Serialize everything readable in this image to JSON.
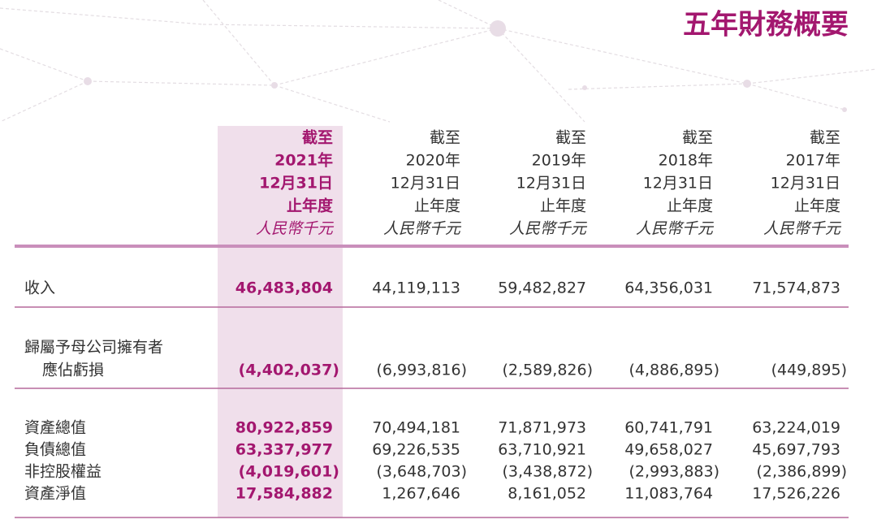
{
  "title": "五年財務概要",
  "table": {
    "columns": [
      {
        "lines": [
          "截至",
          "2021年",
          "12月31日",
          "止年度",
          "人民幣千元"
        ]
      },
      {
        "lines": [
          "截至",
          "2020年",
          "12月31日",
          "止年度",
          "人民幣千元"
        ]
      },
      {
        "lines": [
          "截至",
          "2019年",
          "12月31日",
          "止年度",
          "人民幣千元"
        ]
      },
      {
        "lines": [
          "截至",
          "2018年",
          "12月31日",
          "止年度",
          "人民幣千元"
        ]
      },
      {
        "lines": [
          "截至",
          "2017年",
          "12月31日",
          "止年度",
          "人民幣千元"
        ]
      }
    ],
    "rows": [
      {
        "label": [
          "收入"
        ],
        "values": [
          "46,483,804",
          "44,119,113",
          "59,482,827",
          "64,356,031",
          "71,574,873"
        ]
      },
      {
        "label": [
          "歸屬予母公司擁有者",
          "應佔虧損"
        ],
        "values": [
          "(4,402,037)",
          "(6,993,816)",
          "(2,589,826)",
          "(4,886,895)",
          "(449,895)"
        ]
      },
      {
        "label": [
          "資產總值"
        ],
        "values": [
          "80,922,859",
          "70,494,181",
          "71,871,973",
          "60,741,791",
          "63,224,019"
        ]
      },
      {
        "label": [
          "負債總值"
        ],
        "values": [
          "63,337,977",
          "69,226,535",
          "63,710,921",
          "49,658,027",
          "45,697,793"
        ]
      },
      {
        "label": [
          "非控股權益"
        ],
        "values": [
          "(4,019,601)",
          "(3,648,703)",
          "(3,438,872)",
          "(2,993,883)",
          "(2,386,899)"
        ]
      },
      {
        "label": [
          "資產淨值"
        ],
        "values": [
          "17,584,882",
          "1,267,646",
          "8,161,052",
          "11,083,764",
          "17,526,226"
        ]
      }
    ]
  }
}
